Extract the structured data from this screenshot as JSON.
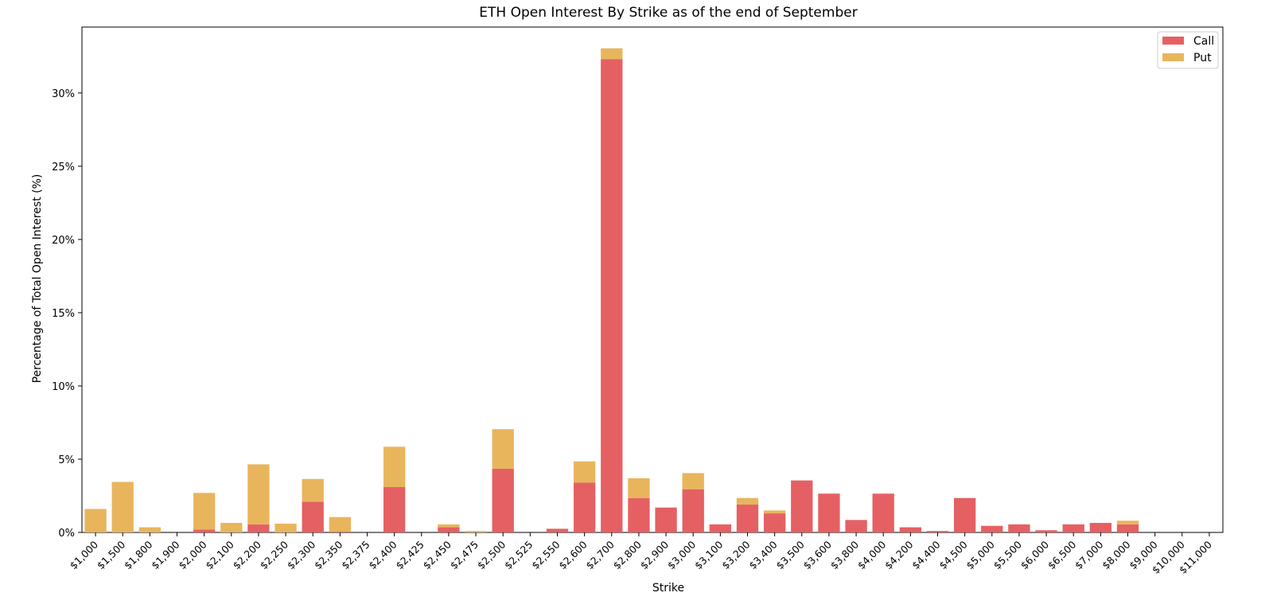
{
  "chart_data": {
    "type": "bar",
    "stacked": true,
    "title": "ETH Open Interest By Strike as of the end of September",
    "xlabel": "Strike",
    "ylabel": "Percentage of Total Open Interest (%)",
    "ylim": [
      0,
      34.5
    ],
    "yticks": [
      0,
      5,
      10,
      15,
      20,
      25,
      30
    ],
    "ytick_labels": [
      "0%",
      "5%",
      "10%",
      "15%",
      "20%",
      "25%",
      "30%"
    ],
    "grid": false,
    "legend": {
      "position": "top-right"
    },
    "colors": {
      "Call": "#e56063",
      "Put": "#e8b55d"
    },
    "categories": [
      "$1,000",
      "$1,500",
      "$1,800",
      "$1,900",
      "$2,000",
      "$2,100",
      "$2,200",
      "$2,250",
      "$2,300",
      "$2,350",
      "$2,375",
      "$2,400",
      "$2,425",
      "$2,450",
      "$2,475",
      "$2,500",
      "$2,525",
      "$2,550",
      "$2,600",
      "$2,700",
      "$2,800",
      "$2,900",
      "$3,000",
      "$3,100",
      "$3,200",
      "$3,400",
      "$3,500",
      "$3,600",
      "$3,800",
      "$4,000",
      "$4,200",
      "$4,400",
      "$4,500",
      "$5,000",
      "$5,500",
      "$6,000",
      "$6,500",
      "$7,000",
      "$8,000",
      "$9,000",
      "$10,000",
      "$11,000"
    ],
    "series": [
      {
        "name": "Call",
        "values": [
          0,
          0,
          0,
          0,
          0.2,
          0,
          0.55,
          0,
          2.1,
          0.05,
          0,
          3.1,
          0,
          0.35,
          0,
          4.35,
          0,
          0.25,
          3.4,
          32.3,
          2.35,
          1.7,
          2.95,
          0.55,
          1.9,
          1.3,
          3.55,
          2.65,
          0.85,
          2.65,
          0.35,
          0.1,
          2.35,
          0.45,
          0.55,
          0.15,
          0.55,
          0.65,
          0.55,
          0,
          0,
          0
        ]
      },
      {
        "name": "Put",
        "values": [
          1.6,
          3.45,
          0.35,
          0,
          2.5,
          0.65,
          4.1,
          0.6,
          1.55,
          1.0,
          0,
          2.75,
          0,
          0.2,
          0.1,
          2.7,
          0,
          0,
          1.45,
          0.75,
          1.35,
          0,
          1.1,
          0,
          0.45,
          0.2,
          0,
          0,
          0,
          0,
          0,
          0,
          0,
          0,
          0,
          0,
          0,
          0,
          0.25,
          0,
          0,
          0
        ]
      }
    ]
  }
}
